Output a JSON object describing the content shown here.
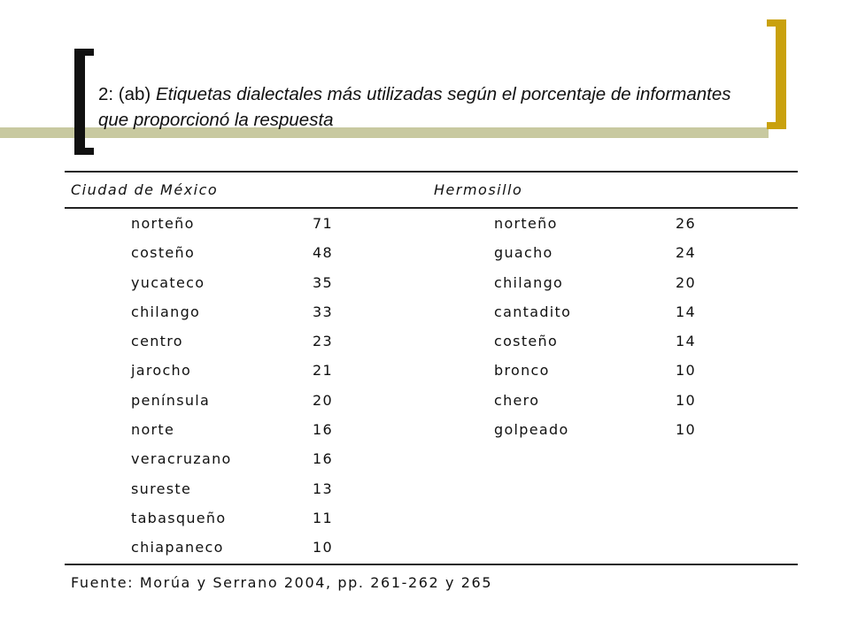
{
  "slide": {
    "title_prefix": "2: (ab) ",
    "title_italic": "Etiquetas dialectales más utilizadas según el porcentaje de informantes que proporcionó la respuesta"
  },
  "table": {
    "headers": [
      "Ciudad de México",
      "Hermosillo"
    ],
    "mexico": [
      {
        "label": "norteño",
        "value": "71"
      },
      {
        "label": "costeño",
        "value": "48"
      },
      {
        "label": "yucateco",
        "value": "35"
      },
      {
        "label": "chilango",
        "value": "33"
      },
      {
        "label": "centro",
        "value": "23"
      },
      {
        "label": "jarocho",
        "value": "21"
      },
      {
        "label": "península",
        "value": "20"
      },
      {
        "label": "norte",
        "value": "16"
      },
      {
        "label": "veracruzano",
        "value": "16"
      },
      {
        "label": "sureste",
        "value": "13"
      },
      {
        "label": "tabasqueño",
        "value": "11"
      },
      {
        "label": "chiapaneco",
        "value": "10"
      }
    ],
    "hermosillo": [
      {
        "label": "norteño",
        "value": "26"
      },
      {
        "label": "guacho",
        "value": "24"
      },
      {
        "label": "chilango",
        "value": "20"
      },
      {
        "label": "cantadito",
        "value": "14"
      },
      {
        "label": "costeño",
        "value": "14"
      },
      {
        "label": "bronco",
        "value": "10"
      },
      {
        "label": "chero",
        "value": "10"
      },
      {
        "label": "golpeado",
        "value": "10"
      }
    ],
    "source": "Fuente: Morúa y Serrano 2004, pp. 261-262 y 265"
  },
  "colors": {
    "left_bracket": "#111111",
    "right_bracket": "#c9a10d",
    "accent_bar": "#c8c9a0"
  }
}
